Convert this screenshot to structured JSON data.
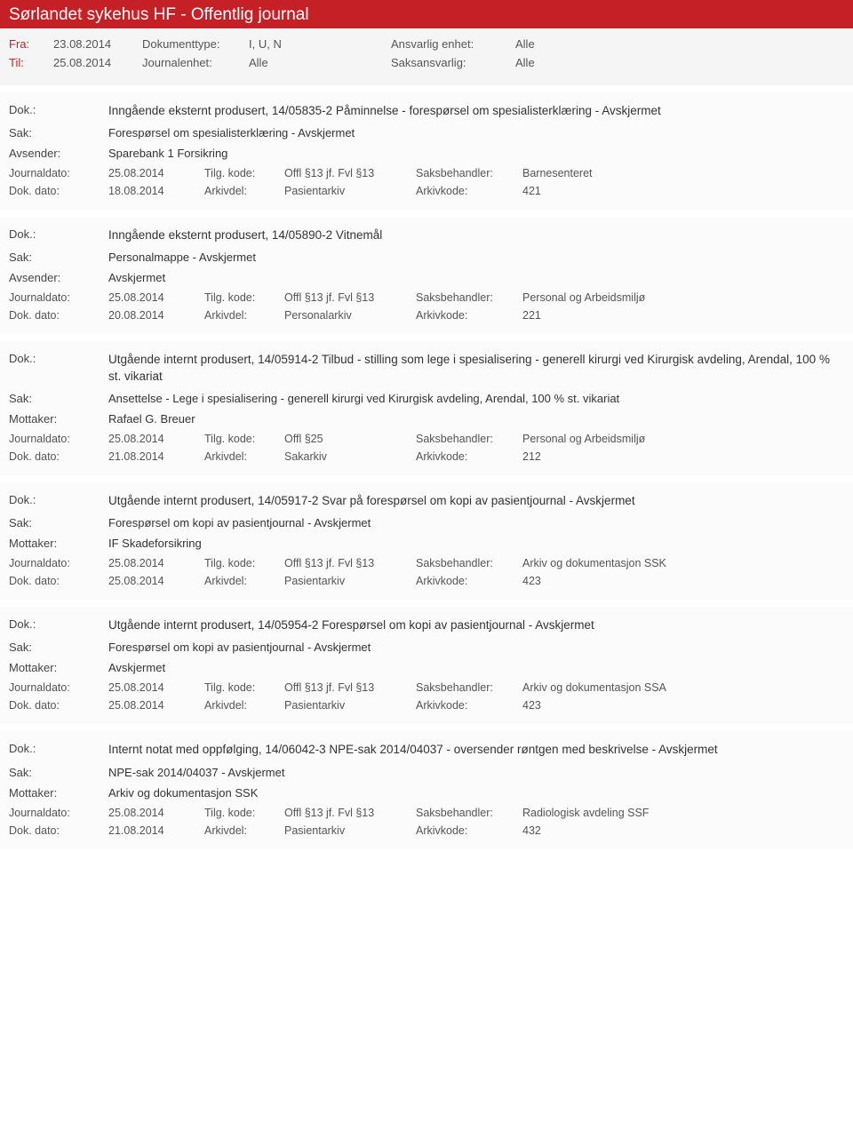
{
  "header": {
    "title": "Sørlandet sykehus HF - Offentlig journal"
  },
  "meta": {
    "fraLabel": "Fra:",
    "fraValue": "23.08.2014",
    "tilLabel": "Til:",
    "tilValue": "25.08.2014",
    "doktypeLabel": "Dokumenttype:",
    "doktypeValue": "I, U, N",
    "journalenhetLabel": "Journalenhet:",
    "journalenhetValue": "Alle",
    "ansvEnhetLabel": "Ansvarlig enhet:",
    "ansvEnhetValue": "Alle",
    "saksansvLabel": "Saksansvarlig:",
    "saksansvValue": "Alle"
  },
  "labels": {
    "dok": "Dok.:",
    "sak": "Sak:",
    "avsender": "Avsender:",
    "mottaker": "Mottaker:",
    "journaldato": "Journaldato:",
    "tilgkode": "Tilg. kode:",
    "saksbeh": "Saksbehandler:",
    "dokdato": "Dok. dato:",
    "arkivdel": "Arkivdel:",
    "arkivkode": "Arkivkode:"
  },
  "entries": [
    {
      "dok": "Inngående eksternt produsert, 14/05835-2 Påminnelse - forespørsel om spesialisterklæring - Avskjermet",
      "sak": "Forespørsel om spesialisterklæring - Avskjermet",
      "partyLabel": "Avsender:",
      "party": "Sparebank 1 Forsikring",
      "journaldato": "25.08.2014",
      "tilgkode": "Offl §13 jf. Fvl §13",
      "saksbeh": "Barnesenteret",
      "dokdato": "18.08.2014",
      "arkivdel": "Pasientarkiv",
      "arkivkode": "421"
    },
    {
      "dok": "Inngående eksternt produsert, 14/05890-2 Vitnemål",
      "sak": "Personalmappe - Avskjermet",
      "partyLabel": "Avsender:",
      "party": "Avskjermet",
      "journaldato": "25.08.2014",
      "tilgkode": "Offl §13 jf. Fvl §13",
      "saksbeh": "Personal og Arbeidsmiljø",
      "dokdato": "20.08.2014",
      "arkivdel": "Personalarkiv",
      "arkivkode": "221"
    },
    {
      "dok": "Utgående internt produsert, 14/05914-2 Tilbud - stilling som lege i spesialisering - generell kirurgi ved Kirurgisk avdeling, Arendal, 100 % st. vikariat",
      "sak": "Ansettelse - Lege i spesialisering - generell kirurgi ved Kirurgisk avdeling, Arendal, 100 % st. vikariat",
      "partyLabel": "Mottaker:",
      "party": "Rafael G. Breuer",
      "journaldato": "25.08.2014",
      "tilgkode": "Offl §25",
      "saksbeh": "Personal og Arbeidsmiljø",
      "dokdato": "21.08.2014",
      "arkivdel": "Sakarkiv",
      "arkivkode": "212"
    },
    {
      "dok": "Utgående internt produsert, 14/05917-2 Svar på forespørsel om kopi av pasientjournal - Avskjermet",
      "sak": "Forespørsel om kopi av pasientjournal - Avskjermet",
      "partyLabel": "Mottaker:",
      "party": "IF Skadeforsikring",
      "journaldato": "25.08.2014",
      "tilgkode": "Offl §13 jf. Fvl §13",
      "saksbeh": "Arkiv og dokumentasjon SSK",
      "dokdato": "25.08.2014",
      "arkivdel": "Pasientarkiv",
      "arkivkode": "423"
    },
    {
      "dok": "Utgående internt produsert, 14/05954-2 Forespørsel om kopi av pasientjournal - Avskjermet",
      "sak": "Forespørsel om kopi av pasientjournal - Avskjermet",
      "partyLabel": "Mottaker:",
      "party": "Avskjermet",
      "journaldato": "25.08.2014",
      "tilgkode": "Offl §13 jf. Fvl §13",
      "saksbeh": "Arkiv og dokumentasjon SSA",
      "dokdato": "25.08.2014",
      "arkivdel": "Pasientarkiv",
      "arkivkode": "423"
    },
    {
      "dok": "Internt notat med oppfølging, 14/06042-3 NPE-sak 2014/04037 - oversender røntgen med beskrivelse - Avskjermet",
      "sak": "NPE-sak 2014/04037 - Avskjermet",
      "partyLabel": "Mottaker:",
      "party": "Arkiv og dokumentasjon SSK",
      "journaldato": "25.08.2014",
      "tilgkode": "Offl §13 jf. Fvl §13",
      "saksbeh": "Radiologisk avdeling SSF",
      "dokdato": "21.08.2014",
      "arkivdel": "Pasientarkiv",
      "arkivkode": "432"
    }
  ]
}
